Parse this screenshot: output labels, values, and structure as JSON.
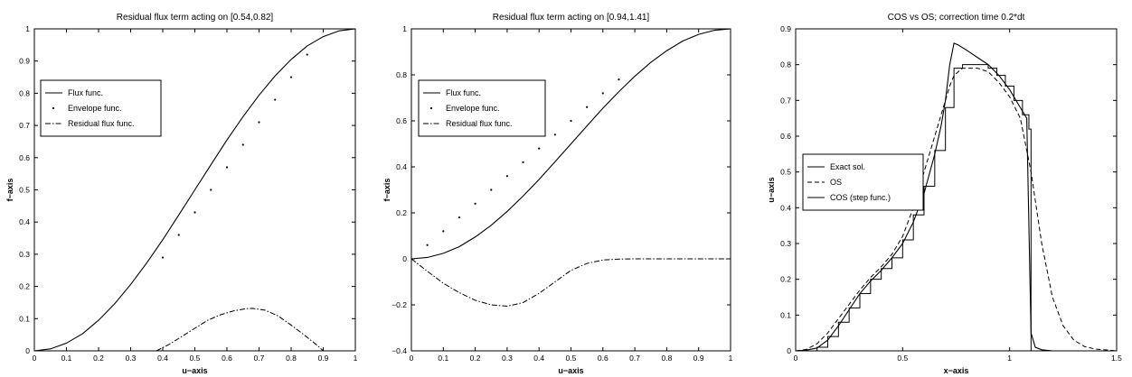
{
  "chart_data": [
    {
      "type": "line",
      "title": "Residual flux term acting on [0.54,0.82]",
      "xlabel": "u−axis",
      "ylabel": "f−axis",
      "xlim": [
        0,
        1
      ],
      "ylim": [
        0,
        1
      ],
      "xticks": [
        "0",
        "0.1",
        "0.2",
        "0.3",
        "0.4",
        "0.5",
        "0.6",
        "0.7",
        "0.8",
        "0.9",
        "1"
      ],
      "yticks": [
        "0",
        "0.1",
        "0.2",
        "0.3",
        "0.4",
        "0.5",
        "0.6",
        "0.7",
        "0.8",
        "0.9",
        "1"
      ],
      "legend_position": "left",
      "series": [
        {
          "name": "Flux func.",
          "style": "solid",
          "x": [
            0,
            0.05,
            0.1,
            0.15,
            0.2,
            0.25,
            0.3,
            0.35,
            0.4,
            0.45,
            0.5,
            0.55,
            0.6,
            0.65,
            0.7,
            0.75,
            0.8,
            0.85,
            0.9,
            0.95,
            1
          ],
          "y": [
            0,
            0.006,
            0.024,
            0.053,
            0.095,
            0.146,
            0.206,
            0.273,
            0.345,
            0.422,
            0.5,
            0.578,
            0.655,
            0.727,
            0.794,
            0.854,
            0.905,
            0.947,
            0.976,
            0.994,
            1
          ]
        },
        {
          "name": "Envelope func.",
          "style": "dots",
          "x": [
            0.4,
            0.45,
            0.5,
            0.55,
            0.6,
            0.65,
            0.7,
            0.75,
            0.8,
            0.85
          ],
          "y": [
            0.29,
            0.36,
            0.43,
            0.5,
            0.57,
            0.64,
            0.71,
            0.78,
            0.85,
            0.92
          ]
        },
        {
          "name": "Residual flux func.",
          "style": "dashdot",
          "x": [
            0.38,
            0.42,
            0.46,
            0.5,
            0.54,
            0.58,
            0.62,
            0.66,
            0.68,
            0.72,
            0.76,
            0.8,
            0.84,
            0.88,
            0.9
          ],
          "y": [
            0,
            0.02,
            0.045,
            0.07,
            0.095,
            0.112,
            0.124,
            0.131,
            0.132,
            0.126,
            0.108,
            0.08,
            0.05,
            0.018,
            0
          ]
        }
      ]
    },
    {
      "type": "line",
      "title": "Residual flux term acting on [0.94,1.41]",
      "xlabel": "u−axis",
      "ylabel": "f−axis",
      "xlim": [
        0,
        1
      ],
      "ylim": [
        -0.4,
        1
      ],
      "xticks": [
        "0",
        "0.1",
        "0.2",
        "0.3",
        "0.4",
        "0.5",
        "0.6",
        "0.7",
        "0.8",
        "0.9",
        "1"
      ],
      "yticks": [
        "−0.4",
        "−0.2",
        "0",
        "0.2",
        "0.4",
        "0.6",
        "0.8",
        "1"
      ],
      "legend_position": "left",
      "series": [
        {
          "name": "Flux func.",
          "style": "solid",
          "x": [
            0,
            0.05,
            0.1,
            0.15,
            0.2,
            0.25,
            0.3,
            0.35,
            0.4,
            0.45,
            0.5,
            0.55,
            0.6,
            0.65,
            0.7,
            0.75,
            0.8,
            0.85,
            0.9,
            0.95,
            1
          ],
          "y": [
            0,
            0.006,
            0.024,
            0.053,
            0.095,
            0.146,
            0.206,
            0.273,
            0.345,
            0.422,
            0.5,
            0.578,
            0.655,
            0.727,
            0.794,
            0.854,
            0.905,
            0.947,
            0.976,
            0.994,
            1
          ]
        },
        {
          "name": "Envelope func.",
          "style": "dots",
          "x": [
            0.05,
            0.1,
            0.15,
            0.2,
            0.25,
            0.3,
            0.35,
            0.4,
            0.45,
            0.5,
            0.55,
            0.6,
            0.65
          ],
          "y": [
            0.06,
            0.12,
            0.18,
            0.24,
            0.3,
            0.36,
            0.42,
            0.48,
            0.54,
            0.6,
            0.66,
            0.72,
            0.78
          ]
        },
        {
          "name": "Residual flux func.",
          "style": "dashdot",
          "x": [
            0,
            0.05,
            0.1,
            0.15,
            0.2,
            0.25,
            0.3,
            0.35,
            0.4,
            0.45,
            0.5,
            0.55,
            0.6,
            0.65,
            0.7,
            0.75,
            0.8,
            0.85,
            0.9,
            0.95,
            1
          ],
          "y": [
            0,
            -0.054,
            -0.106,
            -0.147,
            -0.18,
            -0.2,
            -0.206,
            -0.19,
            -0.15,
            -0.1,
            -0.05,
            -0.02,
            -0.005,
            -0.001,
            0,
            0,
            0,
            0,
            0,
            0,
            0
          ]
        }
      ]
    },
    {
      "type": "line",
      "title": "COS vs OS; correction time 0.2*dt",
      "xlabel": "x−axis",
      "ylabel": "u−axis",
      "xlim": [
        0,
        1.5
      ],
      "ylim": [
        0,
        0.9
      ],
      "xticks": [
        "0",
        "0.5",
        "1",
        "1.5"
      ],
      "yticks": [
        "0",
        "0.1",
        "0.2",
        "0.3",
        "0.4",
        "0.5",
        "0.6",
        "0.7",
        "0.8",
        "0.9"
      ],
      "legend_position": "left",
      "series": [
        {
          "name": "Exact sol.",
          "style": "solid",
          "x": [
            0,
            0.05,
            0.1,
            0.15,
            0.2,
            0.25,
            0.3,
            0.35,
            0.4,
            0.45,
            0.5,
            0.55,
            0.6,
            0.65,
            0.68,
            0.7,
            0.72,
            0.74,
            0.76,
            0.8,
            0.85,
            0.9,
            0.95,
            1.0,
            1.05,
            1.08,
            1.09,
            1.1,
            1.12,
            1.15,
            1.2,
            1.5
          ],
          "y": [
            0,
            0.002,
            0.008,
            0.03,
            0.07,
            0.115,
            0.16,
            0.195,
            0.225,
            0.26,
            0.3,
            0.36,
            0.44,
            0.55,
            0.63,
            0.7,
            0.8,
            0.86,
            0.855,
            0.84,
            0.82,
            0.8,
            0.77,
            0.73,
            0.68,
            0.65,
            0.35,
            0.05,
            0.01,
            0.003,
            0,
            0
          ]
        },
        {
          "name": "OS",
          "style": "dashed",
          "x": [
            0,
            0.05,
            0.1,
            0.15,
            0.2,
            0.25,
            0.3,
            0.35,
            0.4,
            0.45,
            0.5,
            0.55,
            0.6,
            0.65,
            0.7,
            0.72,
            0.74,
            0.78,
            0.85,
            0.9,
            0.95,
            1.0,
            1.05,
            1.1,
            1.15,
            1.2,
            1.25,
            1.3,
            1.35,
            1.4,
            1.5
          ],
          "y": [
            0,
            0.004,
            0.02,
            0.05,
            0.09,
            0.13,
            0.17,
            0.205,
            0.235,
            0.27,
            0.32,
            0.4,
            0.5,
            0.6,
            0.7,
            0.74,
            0.77,
            0.79,
            0.79,
            0.78,
            0.75,
            0.71,
            0.65,
            0.5,
            0.3,
            0.15,
            0.07,
            0.03,
            0.012,
            0.005,
            0
          ]
        },
        {
          "name": "COS (step func.)",
          "style": "step",
          "x": [
            0,
            0.1,
            0.15,
            0.2,
            0.25,
            0.3,
            0.35,
            0.4,
            0.45,
            0.5,
            0.55,
            0.6,
            0.65,
            0.7,
            0.74,
            0.78,
            0.82,
            0.86,
            0.9,
            0.94,
            0.98,
            1.02,
            1.06,
            1.09,
            1.1,
            1.5
          ],
          "y": [
            0,
            0.01,
            0.04,
            0.08,
            0.12,
            0.16,
            0.2,
            0.23,
            0.26,
            0.31,
            0.38,
            0.46,
            0.56,
            0.68,
            0.79,
            0.8,
            0.8,
            0.8,
            0.79,
            0.77,
            0.74,
            0.7,
            0.66,
            0.62,
            0.0,
            0.0
          ]
        }
      ]
    }
  ]
}
